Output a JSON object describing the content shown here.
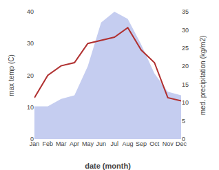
{
  "chart_data": {
    "type": "line",
    "x_label": "date (month)",
    "y_label": "max temp (C)",
    "y2_label": "med. precipitation (kg/m2)",
    "categories": [
      "Jan",
      "Feb",
      "Mar",
      "Apr",
      "May",
      "Jun",
      "Jul",
      "Aug",
      "Sep",
      "Oct",
      "Nov",
      "Dec"
    ],
    "series": [
      {
        "type": "area",
        "axis": "y2",
        "color": "#c5cdf0",
        "values": [
          9,
          9,
          11,
          12,
          20,
          32,
          35,
          33,
          26,
          18,
          13,
          12
        ]
      },
      {
        "type": "line",
        "color": "#b03030",
        "values": [
          13,
          20,
          23,
          24,
          30,
          31,
          32,
          35,
          28,
          24,
          13,
          12
        ]
      }
    ],
    "ylim": [
      0,
      40
    ],
    "yticks": [
      0,
      10,
      20,
      30,
      40
    ],
    "y2lim": [
      0,
      35
    ],
    "y2ticks": [
      0,
      5,
      10,
      15,
      20,
      25,
      30,
      35
    ],
    "grid": false
  }
}
